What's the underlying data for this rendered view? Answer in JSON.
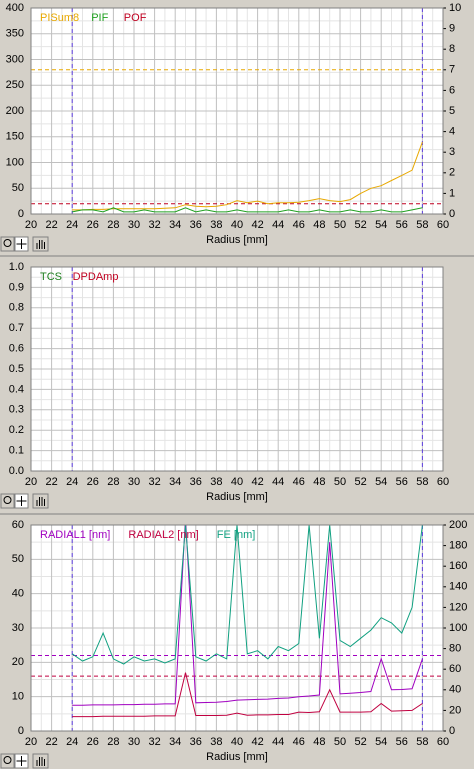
{
  "chart_data": [
    {
      "type": "line",
      "xlabel": "Radius [mm]",
      "x": [
        24,
        25,
        26,
        27,
        28,
        29,
        30,
        31,
        32,
        33,
        34,
        35,
        36,
        37,
        38,
        39,
        40,
        41,
        42,
        43,
        44,
        45,
        46,
        47,
        48,
        49,
        50,
        51,
        52,
        53,
        54,
        55,
        56,
        57,
        58
      ],
      "series": [
        {
          "name": "PISum8",
          "color": "#e8a800",
          "values": [
            8,
            8,
            9,
            9,
            10,
            10,
            10,
            10,
            10,
            11,
            12,
            18,
            15,
            14,
            15,
            18,
            26,
            22,
            25,
            20,
            22,
            22,
            23,
            26,
            30,
            26,
            24,
            28,
            40,
            50,
            55,
            65,
            75,
            85,
            140
          ]
        },
        {
          "name": "PIF",
          "color": "#20a020",
          "axis": "y2",
          "values": [
            0.1,
            0.2,
            0.2,
            0.1,
            0.3,
            0.1,
            0.1,
            0.2,
            0.1,
            0.1,
            0.1,
            0.3,
            0.1,
            0.2,
            0.1,
            0.1,
            0.2,
            0.1,
            0.1,
            0.1,
            0.1,
            0.2,
            0.1,
            0.1,
            0.2,
            0.1,
            0.1,
            0.2,
            0.1,
            0.1,
            0.2,
            0.1,
            0.1,
            0.2,
            0.3
          ]
        },
        {
          "name": "POF",
          "color": "#c00020",
          "axis": "y2",
          "values": [
            0,
            0,
            0,
            0,
            0,
            0,
            0,
            0,
            0,
            0,
            0,
            0,
            0,
            0,
            0,
            0,
            0,
            0,
            0,
            0,
            0,
            0,
            0,
            0,
            0,
            0,
            0,
            0,
            0,
            0,
            0,
            0,
            0,
            0,
            0
          ]
        }
      ],
      "limits": [
        {
          "value": 280,
          "color": "#e8a800"
        },
        {
          "value": 20,
          "color": "#c00020"
        }
      ],
      "markers_x": [
        24,
        58
      ],
      "marker_color": "#6040e0",
      "xlim": [
        20,
        60
      ],
      "xticks": [
        20,
        22,
        24,
        26,
        28,
        30,
        32,
        34,
        36,
        38,
        40,
        42,
        44,
        46,
        48,
        50,
        52,
        54,
        56,
        58,
        60
      ],
      "ylim": [
        0,
        400
      ],
      "yticks": [
        0,
        50,
        100,
        150,
        200,
        250,
        300,
        350,
        400
      ],
      "y2lim": [
        0,
        10
      ],
      "y2ticks": [
        0,
        1,
        2,
        3,
        4,
        5,
        6,
        7,
        8,
        9,
        10
      ],
      "grid": true
    },
    {
      "type": "line",
      "xlabel": "Radius [mm]",
      "series": [
        {
          "name": "TCS",
          "color": "#208020"
        },
        {
          "name": "DPDAmp",
          "color": "#c00020"
        }
      ],
      "markers_x": [
        24,
        58
      ],
      "marker_color": "#6040e0",
      "xlim": [
        20,
        60
      ],
      "xticks": [
        20,
        22,
        24,
        26,
        28,
        30,
        32,
        34,
        36,
        38,
        40,
        42,
        44,
        46,
        48,
        50,
        52,
        54,
        56,
        58,
        60
      ],
      "ylim": [
        0,
        1
      ],
      "yticks": [
        {
          "value": 0,
          "label": "0.0"
        },
        0.1,
        0.2,
        0.3,
        0.4,
        0.5,
        0.6,
        0.7,
        0.8,
        0.9,
        {
          "value": 1,
          "label": "1.0"
        }
      ],
      "grid": true
    },
    {
      "type": "line",
      "xlabel": "Radius [mm]",
      "x": [
        24,
        25,
        26,
        27,
        28,
        29,
        30,
        31,
        32,
        33,
        34,
        35,
        36,
        37,
        38,
        39,
        40,
        41,
        42,
        43,
        44,
        45,
        46,
        47,
        48,
        49,
        50,
        51,
        52,
        53,
        54,
        55,
        56,
        57,
        58
      ],
      "series": [
        {
          "name": "RADIAL1 [nm]",
          "color": "#a000c0",
          "values": [
            7.5,
            7.5,
            7.6,
            7.6,
            7.6,
            7.7,
            7.7,
            7.8,
            7.8,
            7.9,
            7.9,
            62,
            8.2,
            8.3,
            8.4,
            8.6,
            9,
            9.1,
            9.2,
            9.3,
            9.5,
            9.6,
            10,
            10.2,
            10.5,
            55,
            10.8,
            11,
            11.2,
            11.5,
            21,
            12,
            12.1,
            12.3,
            21
          ]
        },
        {
          "name": "RADIAL2 [nm]",
          "color": "#c00040",
          "values": [
            4.2,
            4.2,
            4.2,
            4.3,
            4.3,
            4.3,
            4.3,
            4.3,
            4.4,
            4.4,
            4.4,
            17,
            4.5,
            4.5,
            4.5,
            4.6,
            5.2,
            4.6,
            4.7,
            4.7,
            4.8,
            4.8,
            5.5,
            5.4,
            5.6,
            12,
            5.5,
            5.5,
            5.5,
            5.6,
            8,
            5.8,
            5.9,
            6,
            8
          ]
        },
        {
          "name": "FE [nm]",
          "color": "#10a080",
          "axis": "y2",
          "values": [
            75,
            68,
            72,
            95,
            70,
            65,
            72,
            68,
            70,
            66,
            70,
            200,
            72,
            68,
            75,
            70,
            200,
            75,
            78,
            70,
            82,
            78,
            85,
            200,
            90,
            200,
            88,
            82,
            90,
            98,
            110,
            105,
            95,
            120,
            200
          ]
        }
      ],
      "limits": [
        {
          "value": 22,
          "color": "#a000c0"
        },
        {
          "value": 16,
          "color": "#c00040"
        }
      ],
      "markers_x": [
        24,
        58
      ],
      "marker_color": "#6040e0",
      "xlim": [
        20,
        60
      ],
      "xticks": [
        20,
        22,
        24,
        26,
        28,
        30,
        32,
        34,
        36,
        38,
        40,
        42,
        44,
        46,
        48,
        50,
        52,
        54,
        56,
        58,
        60
      ],
      "ylim": [
        0,
        60
      ],
      "yticks": [
        0,
        10,
        20,
        30,
        40,
        50,
        60
      ],
      "y2lim": [
        0,
        200
      ],
      "y2ticks": [
        0,
        20,
        40,
        60,
        80,
        100,
        120,
        140,
        160,
        180,
        200
      ],
      "grid": true
    }
  ]
}
